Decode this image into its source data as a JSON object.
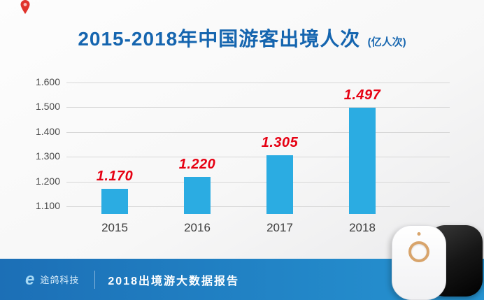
{
  "header": {
    "title": "2015-2018年中国游客出境人次",
    "unit": "(亿人次)"
  },
  "chart_data": {
    "type": "bar",
    "title": "2015-2018年中国游客出境人次",
    "unit": "亿人次",
    "categories": [
      "2015",
      "2016",
      "2017",
      "2018"
    ],
    "values": [
      1.17,
      1.22,
      1.305,
      1.497
    ],
    "labels": [
      "1.170",
      "1.220",
      "1.305",
      "1.497"
    ],
    "yticks": [
      "1.600",
      "1.500",
      "1.400",
      "1.300",
      "1.200",
      "1.100"
    ],
    "ylim": [
      1.1,
      1.6
    ],
    "grid": "horizontal",
    "legend": "none",
    "bar_color": "#2bace2",
    "value_label_color": "#e60012",
    "title_color": "#1565af",
    "footer_color": "#2080c4"
  },
  "footer": {
    "brand": "途鸽科技",
    "report": "2018出境游大数据报告"
  }
}
